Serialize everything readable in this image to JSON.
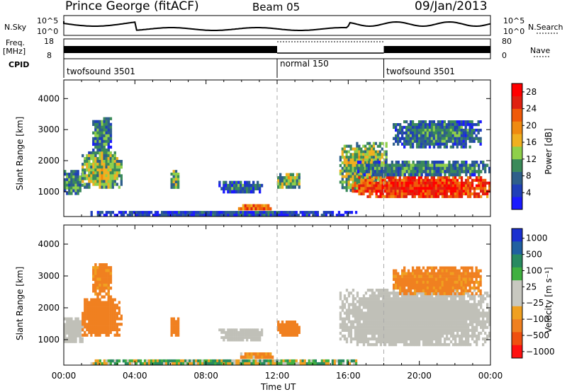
{
  "header": {
    "station": "Prince George (fitACF)",
    "beam": "Beam 05",
    "date": "09/Jan/2013"
  },
  "strip_labels": {
    "nsky": "N.Sky",
    "freq_line1": "Freq.",
    "freq_line2": "[MHz]",
    "cpid": "CPID",
    "nsearch": "N.Search",
    "nave": "Nave",
    "nsky_ticks": [
      "10^5",
      "10^0"
    ],
    "nsearch_ticks": [
      "10^5",
      "10^0"
    ],
    "freq_ticks": [
      "18",
      "8"
    ],
    "nave_ticks": [
      "80",
      "0"
    ]
  },
  "cpid_segments": [
    {
      "label": "twofsound 3501",
      "start_h": 0,
      "end_h": 12
    },
    {
      "label": "normal 150",
      "start_h": 12,
      "end_h": 18
    },
    {
      "label": "twofsound 3501",
      "start_h": 18,
      "end_h": 24
    }
  ],
  "colors": {
    "power_scale": [
      "#1a1aff",
      "#1f3fb8",
      "#2e5f8a",
      "#3a8a5a",
      "#8fd04a",
      "#f0b020",
      "#f08a10",
      "#f05a08",
      "#e02010",
      "#ff0000"
    ],
    "velocity_scale": [
      "#1a30d0",
      "#2060a0",
      "#288a60",
      "#40b040",
      "#c8c8c0",
      "#c8c8c0",
      "#f0a020",
      "#f08020",
      "#f05010",
      "#ff1010"
    ],
    "ground_scatter": "#c0c0b8"
  },
  "chart_data": [
    {
      "type": "heatmap",
      "name": "power",
      "ylabel": "Slant Range [km]",
      "xlabel": "Time UT",
      "x_ticks": [
        "00:00",
        "04:00",
        "08:00",
        "12:00",
        "16:00",
        "20:00",
        "00:00"
      ],
      "xlim_hours": [
        0,
        24
      ],
      "ylim": [
        200,
        4600
      ],
      "y_ticks": [
        1000,
        2000,
        3000,
        4000
      ],
      "colorbar": {
        "label": "Power [dB]",
        "ticks": [
          "28",
          "24",
          "20",
          "16",
          "12",
          "8",
          "4"
        ],
        "range": [
          0,
          30
        ]
      },
      "regions": [
        {
          "t0": 0.0,
          "t1": 1.1,
          "r0": 900,
          "r1": 1700,
          "v": 10
        },
        {
          "t0": 1.0,
          "t1": 3.3,
          "r0": 1100,
          "r1": 2300,
          "v": 14
        },
        {
          "t0": 1.6,
          "t1": 2.7,
          "r0": 2300,
          "r1": 3400,
          "v": 10
        },
        {
          "t0": 6.0,
          "t1": 6.5,
          "r0": 1100,
          "r1": 1700,
          "v": 13
        },
        {
          "t0": 8.7,
          "t1": 11.2,
          "r0": 950,
          "r1": 1350,
          "v": 8
        },
        {
          "t0": 9.8,
          "t1": 11.8,
          "r0": 400,
          "r1": 600,
          "v": 22
        },
        {
          "t0": 12.0,
          "t1": 13.3,
          "r0": 1100,
          "r1": 1600,
          "v": 14
        },
        {
          "t0": 15.5,
          "t1": 18.2,
          "r0": 1000,
          "r1": 2600,
          "v": 14
        },
        {
          "t0": 16.2,
          "t1": 24.0,
          "r0": 800,
          "r1": 1500,
          "v": 26
        },
        {
          "t0": 16.5,
          "t1": 24.0,
          "r0": 1500,
          "r1": 2000,
          "v": 10
        },
        {
          "t0": 18.5,
          "t1": 23.5,
          "r0": 2400,
          "r1": 3300,
          "v": 9
        },
        {
          "t0": 1.5,
          "t1": 16.5,
          "r0": 200,
          "r1": 380,
          "v": 6
        }
      ]
    },
    {
      "type": "heatmap",
      "name": "velocity",
      "ylabel": "Slant Range [km]",
      "xlabel": "Time UT",
      "x_ticks": [
        "00:00",
        "04:00",
        "08:00",
        "12:00",
        "16:00",
        "20:00",
        "00:00"
      ],
      "xlim_hours": [
        0,
        24
      ],
      "ylim": [
        200,
        4600
      ],
      "y_ticks": [
        1000,
        2000,
        3000,
        4000
      ],
      "colorbar": {
        "label": "Velocity [m s⁻¹]",
        "ticks": [
          "1000",
          "500",
          "100",
          "25",
          "−25",
          "−100",
          "−500",
          "−1000"
        ],
        "range": [
          -1000,
          1000
        ]
      },
      "regions": [
        {
          "t0": 0.0,
          "t1": 1.1,
          "r0": 900,
          "r1": 1700,
          "v": 0,
          "gs": true
        },
        {
          "t0": 1.0,
          "t1": 3.3,
          "r0": 1100,
          "r1": 2300,
          "v": -300
        },
        {
          "t0": 1.6,
          "t1": 2.7,
          "r0": 2300,
          "r1": 3400,
          "v": -200
        },
        {
          "t0": 6.0,
          "t1": 6.5,
          "r0": 1100,
          "r1": 1700,
          "v": -250
        },
        {
          "t0": 8.7,
          "t1": 11.2,
          "r0": 950,
          "r1": 1350,
          "v": 0,
          "gs": true
        },
        {
          "t0": 9.8,
          "t1": 11.8,
          "r0": 400,
          "r1": 600,
          "v": -150
        },
        {
          "t0": 12.0,
          "t1": 13.3,
          "r0": 1100,
          "r1": 1600,
          "v": -300
        },
        {
          "t0": 15.5,
          "t1": 24.0,
          "r0": 800,
          "r1": 2600,
          "v": 0,
          "gs": true
        },
        {
          "t0": 18.5,
          "t1": 23.5,
          "r0": 2400,
          "r1": 3300,
          "v": -200
        },
        {
          "t0": 1.5,
          "t1": 16.5,
          "r0": 200,
          "r1": 380,
          "v": 60
        }
      ]
    }
  ]
}
